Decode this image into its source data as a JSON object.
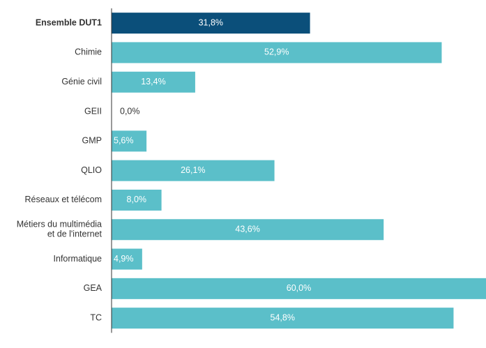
{
  "chart_data": {
    "type": "bar",
    "orientation": "horizontal",
    "categories": [
      "Ensemble DUT1",
      "Chimie",
      "Génie civil",
      "GEII",
      "GMP",
      "QLIO",
      "Réseaux et télécom",
      "Métiers du multimédia\net de l'internet",
      "Informatique",
      "GEA",
      "TC"
    ],
    "values": [
      31.8,
      52.9,
      13.4,
      0.0,
      5.6,
      26.1,
      8.0,
      43.6,
      4.9,
      60.0,
      54.8
    ],
    "value_labels": [
      "31,8%",
      "52,9%",
      "13,4%",
      "0,0%",
      "5,6%",
      "26,1%",
      "8,0%",
      "43,6%",
      "4,9%",
      "60,0%",
      "54,8%"
    ],
    "colors": [
      "#0b4f7a",
      "#5bbfc9",
      "#5bbfc9",
      "#5bbfc9",
      "#5bbfc9",
      "#5bbfc9",
      "#5bbfc9",
      "#5bbfc9",
      "#5bbfc9",
      "#5bbfc9",
      "#5bbfc9"
    ]
  }
}
